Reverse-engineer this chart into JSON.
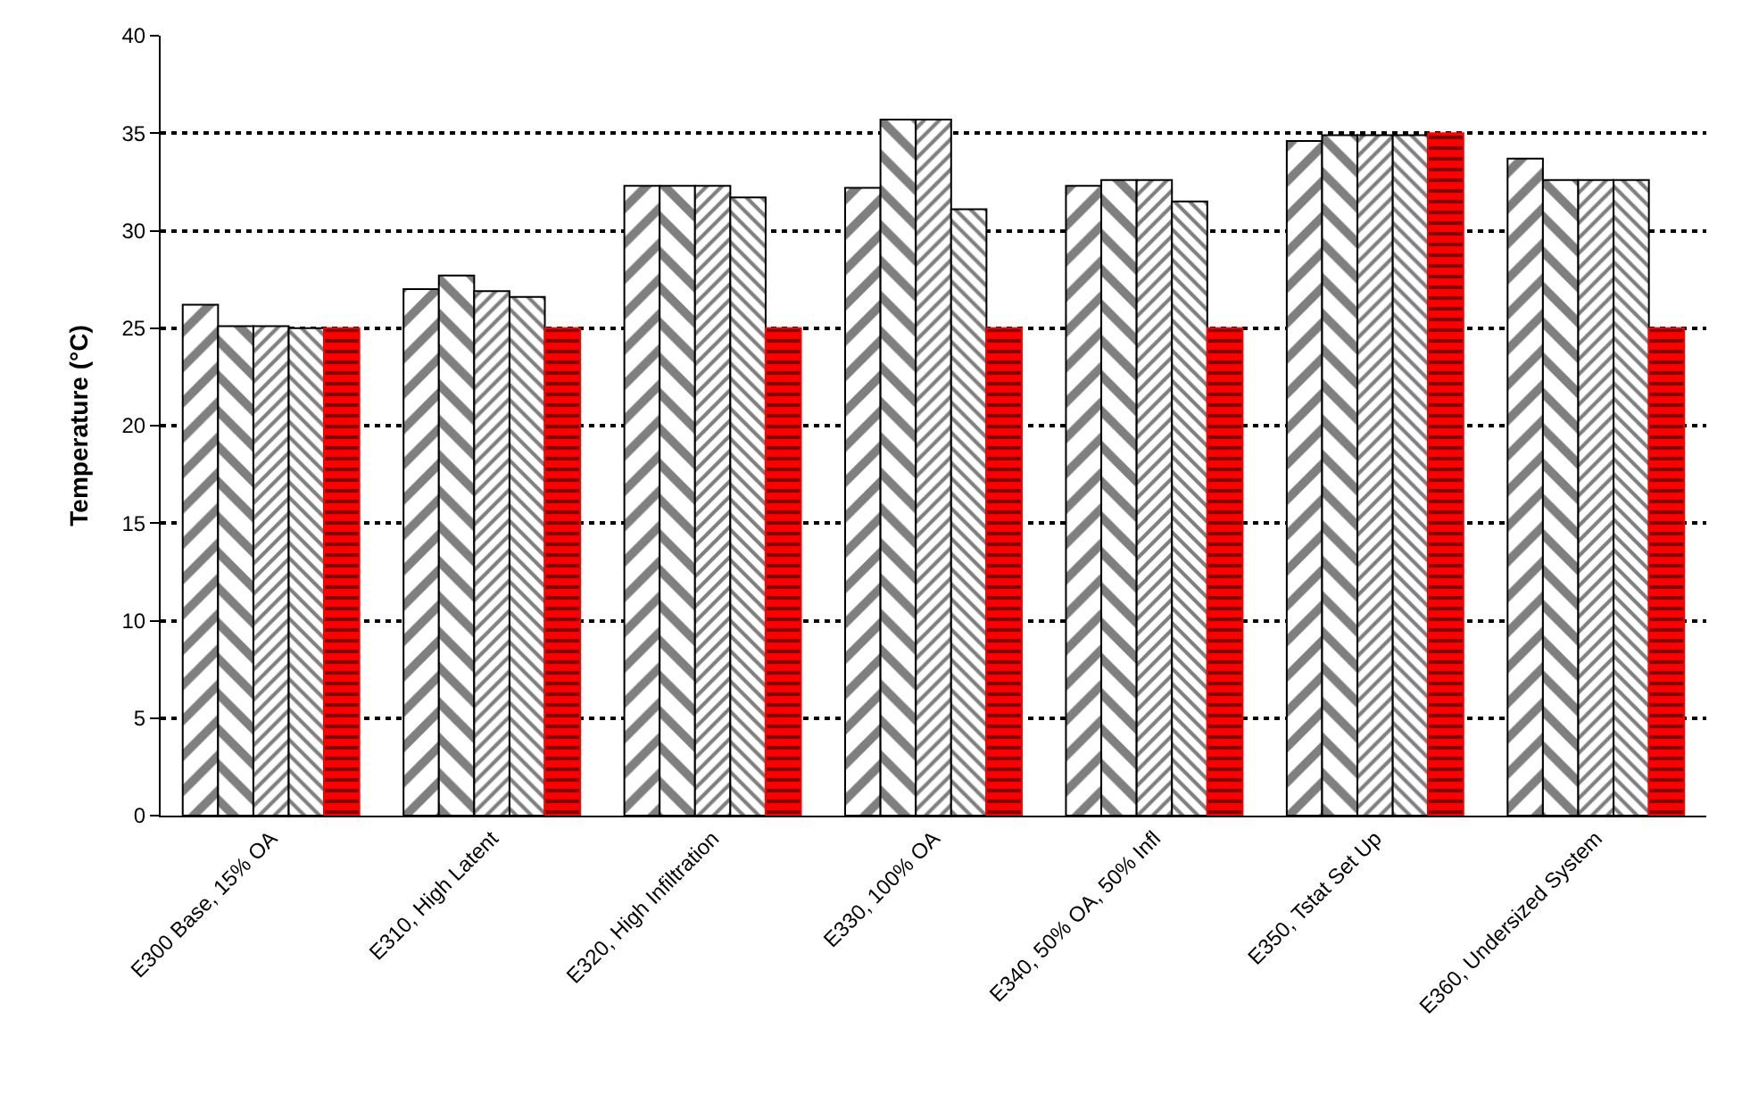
{
  "chart_data": {
    "type": "bar",
    "ylabel": "Temperature (°C)",
    "categories": [
      "E300 Base, 15% OA",
      "E310, High Latent",
      "E320, High Infiltration",
      "E330, 100% OA",
      "E340, 50% OA, 50% Infl",
      "E350, Tstat Set Up",
      "E360, Undersized System"
    ],
    "series": [
      {
        "color": "#000000",
        "values": [
          26.2,
          27.0,
          32.3,
          32.2,
          32.3,
          34.6,
          33.7
        ]
      },
      {
        "color": "#000000",
        "values": [
          25.1,
          27.7,
          32.3,
          35.7,
          32.6,
          34.9,
          32.6
        ]
      },
      {
        "color": "#000000",
        "values": [
          25.1,
          26.9,
          32.3,
          35.7,
          32.6,
          34.9,
          32.6
        ]
      },
      {
        "color": "#000000",
        "values": [
          25.0,
          26.6,
          31.7,
          31.1,
          31.5,
          34.9,
          32.6
        ]
      },
      {
        "color": "#ff0000",
        "values": [
          25.0,
          25.0,
          25.0,
          25.0,
          25.0,
          35.0,
          25.0
        ]
      }
    ],
    "ylim": [
      0,
      40
    ],
    "yticks": [
      0,
      5,
      10,
      15,
      20,
      25,
      30,
      35,
      40
    ],
    "grid": "y"
  }
}
